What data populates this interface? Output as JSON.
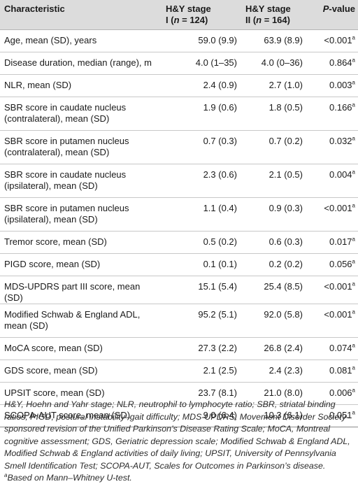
{
  "header": {
    "col1": "Characteristic",
    "col2_line1": "H&Y stage",
    "col2_line2_pre": "I (",
    "col2_n": "n",
    "col2_line2_post": " = 124)",
    "col3_line1": "H&Y stage",
    "col3_line2_pre": "II (",
    "col3_n": "n",
    "col3_line2_post": " = 164)",
    "col4_p": "P",
    "col4_rest": "-value"
  },
  "rows": [
    {
      "label": "Age, mean (SD), years",
      "s1": "59.0 (9.9)",
      "s2": "63.9 (8.9)",
      "p": "<0.001",
      "sup": "a"
    },
    {
      "label": "Disease duration, median (range), m",
      "s1": "4.0 (1–35)",
      "s2": "4.0 (0–36)",
      "p": "0.864",
      "sup": "a"
    },
    {
      "label": "NLR, mean (SD)",
      "s1": "2.4 (0.9)",
      "s2": "2.7 (1.0)",
      "p": "0.003",
      "sup": "a"
    },
    {
      "label": "SBR score in caudate nucleus (contralateral), mean (SD)",
      "s1": "1.9 (0.6)",
      "s2": "1.8 (0.5)",
      "p": "0.166",
      "sup": "a"
    },
    {
      "label": "SBR score in putamen nucleus (contralateral), mean (SD)",
      "s1": "0.7 (0.3)",
      "s2": "0.7 (0.2)",
      "p": "0.032",
      "sup": "a"
    },
    {
      "label": "SBR score in caudate nucleus (ipsilateral), mean (SD)",
      "s1": "2.3 (0.6)",
      "s2": "2.1 (0.5)",
      "p": "0.004",
      "sup": "a"
    },
    {
      "label": "SBR score in putamen nucleus (ipsilateral), mean (SD)",
      "s1": "1.1 (0.4)",
      "s2": "0.9 (0.3)",
      "p": "<0.001",
      "sup": "a"
    },
    {
      "label": "Tremor score, mean (SD)",
      "s1": "0.5 (0.2)",
      "s2": "0.6 (0.3)",
      "p": "0.017",
      "sup": "a"
    },
    {
      "label": "PIGD score, mean (SD)",
      "s1": "0.1 (0.1)",
      "s2": "0.2 (0.2)",
      "p": "0.056",
      "sup": "a"
    },
    {
      "label": "MDS-UPDRS part III score, mean (SD)",
      "s1": "15.1 (5.4)",
      "s2": "25.4 (8.5)",
      "p": "<0.001",
      "sup": "a"
    },
    {
      "label": "Modified Schwab & England ADL, mean (SD)",
      "s1": "95.2 (5.1)",
      "s2": "92.0 (5.8)",
      "p": "<0.001",
      "sup": "a"
    },
    {
      "label": "MoCA score, mean (SD)",
      "s1": "27.3 (2.2)",
      "s2": "26.8 (2.4)",
      "p": "0.074",
      "sup": "a"
    },
    {
      "label": "GDS score, mean (SD)",
      "s1": "2.1 (2.5)",
      "s2": "2.4 (2.3)",
      "p": "0.081",
      "sup": "a"
    },
    {
      "label": "UPSIT score, mean (SD)",
      "s1": "23.7 (8.1)",
      "s2": "21.0 (8.0)",
      "p": "0.006",
      "sup": "a"
    },
    {
      "label": "SCOPA-AUT score, mean (SD)",
      "s1": "9.0 (6.4)",
      "s2": "10.3 (6.1)",
      "p": "0.051",
      "sup": "a"
    }
  ],
  "footnote": {
    "abbreviations": "H&Y, Hoehn and Yahr stage; NLR, neutrophil to lymphocyte ratio; SBR, striatal binding ratios; PIGD, postural instability–gait difficulty; MDS-UPDRS, Movement Disorder Society-sponsored revision of the Unified Parkinson’s Disease Rating Scale; MoCA, Montreal cognitive assessment; GDS, Geriatric depression scale; Modified Schwab & England ADL, Modified Schwab & England activities of daily living; UPSIT, University of Pennsylvania Smell Identification Test; SCOPA-AUT, Scales for Outcomes in Parkinson’s disease.",
    "sup": "a",
    "test": "Based on Mann–Whitney U-test."
  }
}
